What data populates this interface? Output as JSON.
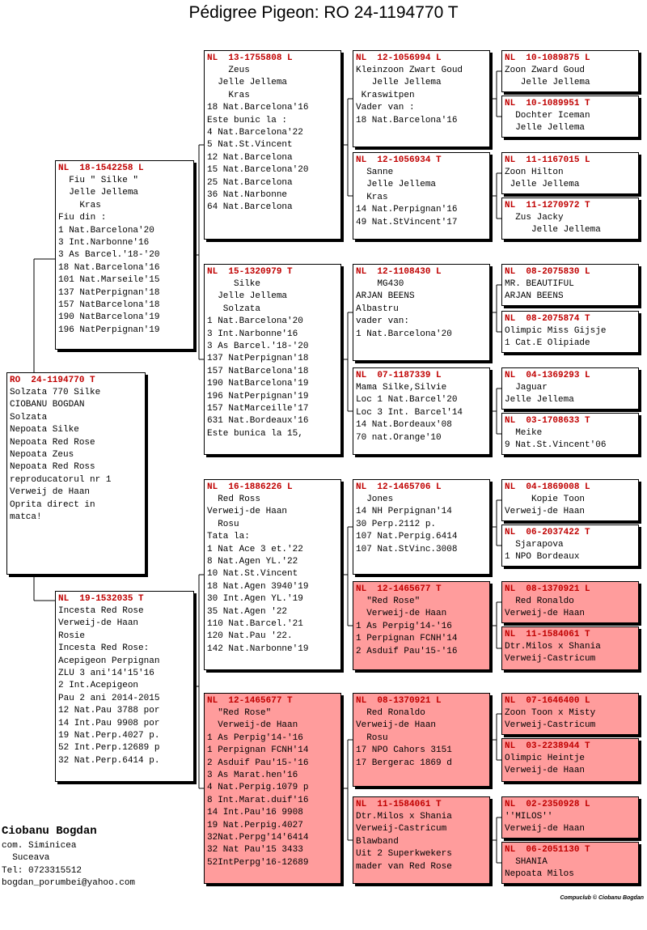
{
  "title": "Pédigree Pigeon: RO  24-1194770 T",
  "pigeons": [
    {
      "ring": "RO  24-1194770 T",
      "lines": [
        "Solzata 770 Silke",
        "CIOBANU BOGDAN",
        "Solzata",
        "Nepoata Silke",
        "Nepoata Red Rose",
        "Nepoata Zeus",
        "Nepoata Red Ross",
        "reproducatorul nr 1",
        "Verweij de Haan",
        "Oprita direct in",
        "matca!"
      ]
    },
    {
      "ring": "NL  18-1542258 L",
      "lines": [
        "  Fiu \" Silke \"",
        "  Jelle Jellema",
        "    Kras",
        "Fiu din :",
        "1 Nat.Barcelona'20",
        "3 Int.Narbonne'16",
        "3 As Barcel.'18-'20",
        "18 Nat.Barcelona'16",
        "101 Nat.Marseile'15",
        "137 NatPerpignan'18",
        "157 NatBarcelona'18",
        "190 NatBarcelona'19",
        "196 NatPerpignan'19"
      ]
    },
    {
      "ring": "NL  19-1532035 T",
      "lines": [
        "Incesta Red Rose",
        "Verweij-de Haan",
        "Rosie",
        "Incesta Red Rose:",
        "Acepigeon Perpignan",
        "ZLU 3 ani'14'15'16",
        "2 Int.Acepigeon",
        "Pau 2 ani 2014-2015",
        "12 Nat.Pau 3788 por",
        "14 Int.Pau 9908 por",
        "19 Nat.Perp.4027 p.",
        "52 Int.Perp.12689 p",
        "32 Nat.Perp.6414 p."
      ]
    },
    {
      "ring": "NL  13-1755808 L",
      "lines": [
        "    Zeus",
        "  Jelle Jellema",
        "    Kras",
        "18 Nat.Barcelona'16",
        "Este bunic la :",
        "4 Nat.Barcelona'22",
        "5 Nat.St.Vincent",
        "12 Nat.Barcelona",
        "15 Nat.Barcelona'20",
        "25 Nat.Barcelona",
        "36 Nat.Narbonne",
        "64 Nat.Barcelona"
      ]
    },
    {
      "ring": "NL  15-1320979 T",
      "lines": [
        "     Silke",
        "  Jelle Jellema",
        "   Solzata",
        "1 Nat.Barcelona'20",
        "3 Int.Narbonne'16",
        "3 As Barcel.'18-'20",
        "137 NatPerpignan'18",
        "157 NatBarcelona'18",
        "190 NatBarcelona'19",
        "196 NatPerpignan'19",
        "157 NatMarceille'17",
        "631 Nat.Bordeaux'16",
        "Este bunica la 15,"
      ]
    },
    {
      "ring": "NL  16-1886226 L",
      "lines": [
        "  Red Ross",
        "Verweij-de Haan",
        "  Rosu",
        "Tata la:",
        "1 Nat Ace 3 et.'22",
        "8 Nat.Agen YL.'22",
        "10 Nat.St.Vincent",
        "18 Nat.Agen 3940'19",
        "30 Int.Agen YL.'19",
        "35 Nat.Agen '22",
        "110 Nat.Barcel.'21",
        "120 Nat.Pau '22.",
        "142 Nat.Narbonne'19"
      ]
    },
    {
      "ring": "NL  12-1465677 T",
      "color": "#ff9c9c",
      "lines": [
        "  \"Red Rose\"",
        "  Verweij-de Haan",
        "1 As Perpig'14-'16",
        "1 Perpignan FCNH'14",
        "2 Asduif Pau'15-'16",
        "3 As Marat.hen'16",
        "4 Nat.Perpig.1079 p",
        "8 Int.Marat.duif'16",
        "14 Int.Pau'16 9908",
        "19 Nat.Perpig.4027",
        "32Nat.Perpg'14'6414",
        "32 Nat Pau'15 3433",
        "52IntPerpg'16-12689"
      ]
    },
    {
      "ring": "NL  12-1056994 L",
      "lines": [
        "Kleinzoon Zwart Goud",
        "   Jelle Jellema",
        " Kraswitpen",
        "Vader van :",
        "18 Nat.Barcelona'16"
      ]
    },
    {
      "ring": "NL  12-1056934 T",
      "lines": [
        "  Sanne",
        "  Jelle Jellema",
        "  Kras",
        "14 Nat.Perpignan'16",
        "49 Nat.StVincent'17"
      ]
    },
    {
      "ring": "NL  12-1108430 L",
      "lines": [
        "    MG430",
        "ARJAN BEENS",
        "Albastru",
        "vader van:",
        "1 Nat.Barcelona'20"
      ]
    },
    {
      "ring": "NL  07-1187339 L",
      "lines": [
        "Mama Silke,Silvie",
        "Loc 1 Nat.Barcel'20",
        "Loc 3 Int. Barcel'14",
        "14 Nat.Bordeaux'08",
        "70 nat.Orange'10"
      ]
    },
    {
      "ring": "NL  12-1465706 L",
      "lines": [
        "  Jones",
        "14 NH Perpignan'14",
        "30 Perp.2112 p.",
        "107 Nat.Perpig.6414",
        "107 Nat.StVinc.3008"
      ]
    },
    {
      "ring": "NL  12-1465677 T",
      "color": "#ff9c9c",
      "lines": [
        "  \"Red Rose\"",
        "  Verweij-de Haan",
        "1 As Perpig'14-'16",
        "1 Perpignan FCNH'14",
        "2 Asduif Pau'15-'16"
      ]
    },
    {
      "ring": "NL  08-1370921 L",
      "color": "#ff9c9c",
      "lines": [
        "  Red Ronaldo",
        "Verweij-de Haan",
        "  Rosu",
        "17 NPO Cahors 3151",
        "17 Bergerac 1869 d"
      ]
    },
    {
      "ring": "NL  11-1584061 T",
      "color": "#ff9c9c",
      "lines": [
        "Dtr.Milos x Shania",
        "Verweij-Castricum",
        "Blawband",
        "Uit 2 Superkwekers",
        "mader van Red Rose"
      ]
    },
    {
      "ring": "NL  10-1089875 L",
      "lines": [
        "Zoon Zward Goud",
        "   Jelle Jellema"
      ]
    },
    {
      "ring": "NL  10-1089951 T",
      "lines": [
        "  Dochter Iceman",
        "  Jelle Jellema"
      ]
    },
    {
      "ring": "NL  11-1167015 L",
      "lines": [
        "Zoon Hilton",
        " Jelle Jellema"
      ]
    },
    {
      "ring": "NL  11-1270972 T",
      "lines": [
        "  Zus Jacky",
        "     Jelle Jellema"
      ]
    },
    {
      "ring": "NL  08-2075830 L",
      "lines": [
        "MR. BEAUTIFUL",
        "ARJAN BEENS"
      ]
    },
    {
      "ring": "NL  08-2075874 T",
      "lines": [
        "Olimpic Miss Gijsje",
        "1 Cat.E Olipiade"
      ]
    },
    {
      "ring": "NL  04-1369293 L",
      "lines": [
        "  Jaguar",
        "Jelle Jellema"
      ]
    },
    {
      "ring": "NL  03-1708633 T",
      "lines": [
        "  Meike",
        "9 Nat.St.Vincent'06"
      ]
    },
    {
      "ring": "NL  04-1869008 L",
      "lines": [
        "     Kopie Toon",
        "Verweij-de Haan"
      ]
    },
    {
      "ring": "NL  06-2037422 T",
      "lines": [
        "  Sjarapova",
        "1 NPO Bordeaux"
      ]
    },
    {
      "ring": "NL  08-1370921 L",
      "color": "#ff9c9c",
      "lines": [
        "  Red Ronaldo",
        "Verweij-de Haan"
      ]
    },
    {
      "ring": "NL  11-1584061 T",
      "color": "#ff9c9c",
      "lines": [
        "Dtr.Milos x Shania",
        "Verweij-Castricum"
      ]
    },
    {
      "ring": "NL  07-1646400 L",
      "color": "#ff9c9c",
      "lines": [
        "Zoon Toon x Misty",
        "Verweij-Castricum"
      ]
    },
    {
      "ring": "NL  03-2238944 T",
      "color": "#ff9c9c",
      "lines": [
        "Olimpic Heintje",
        "Verweij-de Haan"
      ]
    },
    {
      "ring": "NL  02-2350928 L",
      "color": "#ff9c9c",
      "lines": [
        "''MILOS''",
        "Verweij-de Haan"
      ]
    },
    {
      "ring": "NL  06-2051130 T",
      "color": "#ff9c9c",
      "lines": [
        "  SHANIA",
        "Nepoata Milos"
      ]
    }
  ],
  "breeder": {
    "name": "Ciobanu Bogdan",
    "lines": [
      "com. Siminicea",
      "  Suceava",
      "Tel: 0723315512",
      "bogdan_porumbei@yahoo.com"
    ]
  },
  "credit": "Compuclub © Ciobanu Bogdan"
}
